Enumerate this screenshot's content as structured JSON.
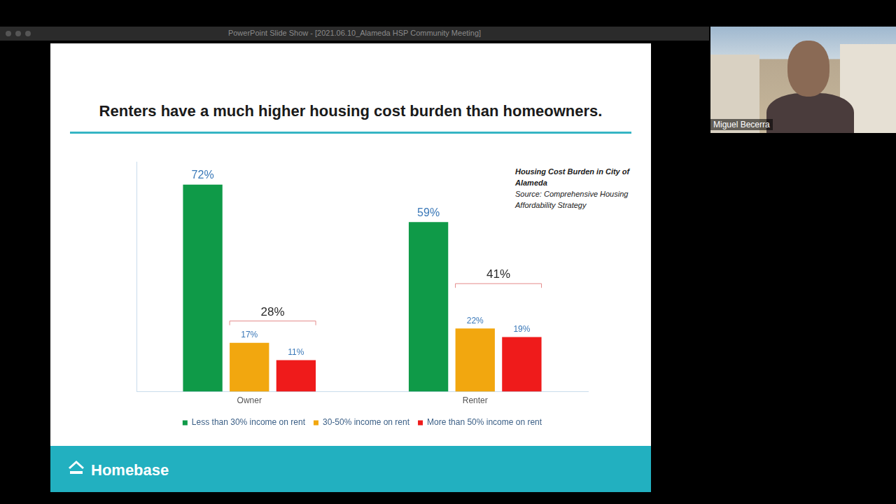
{
  "window": {
    "title": "PowerPoint Slide Show - [2021.06.10_Alameda HSP Community Meeting]"
  },
  "video": {
    "name": "Miguel Becerra"
  },
  "slide": {
    "footer": "Homebase"
  },
  "chart_data": {
    "type": "bar",
    "title": "Renters have a much higher housing cost burden than homeowners.",
    "annotations": [
      "Housing Cost Burden in City of Alameda",
      "Source: Comprehensive Housing Affordability Strategy"
    ],
    "categories": [
      "Owner",
      "Renter"
    ],
    "series": [
      {
        "name": "Less than 30% income on rent",
        "color": "#0f9a48",
        "values": [
          72,
          59
        ],
        "value_labels": [
          "72%",
          "59%"
        ]
      },
      {
        "name": "30-50% income on rent",
        "color": "#f2a70f",
        "values": [
          17,
          22
        ],
        "value_labels": [
          "17%",
          "22%"
        ]
      },
      {
        "name": "More than 50% income on rent",
        "color": "#ef1b1b",
        "values": [
          11,
          19
        ],
        "value_labels": [
          "11%",
          "19%"
        ]
      }
    ],
    "group_totals": {
      "values": [
        28,
        41
      ],
      "value_labels": [
        "28%",
        "41%"
      ]
    },
    "ylim": [
      0,
      80
    ],
    "grid": false,
    "legend": "bottom",
    "data_labels": true,
    "tick_labels": "x"
  }
}
